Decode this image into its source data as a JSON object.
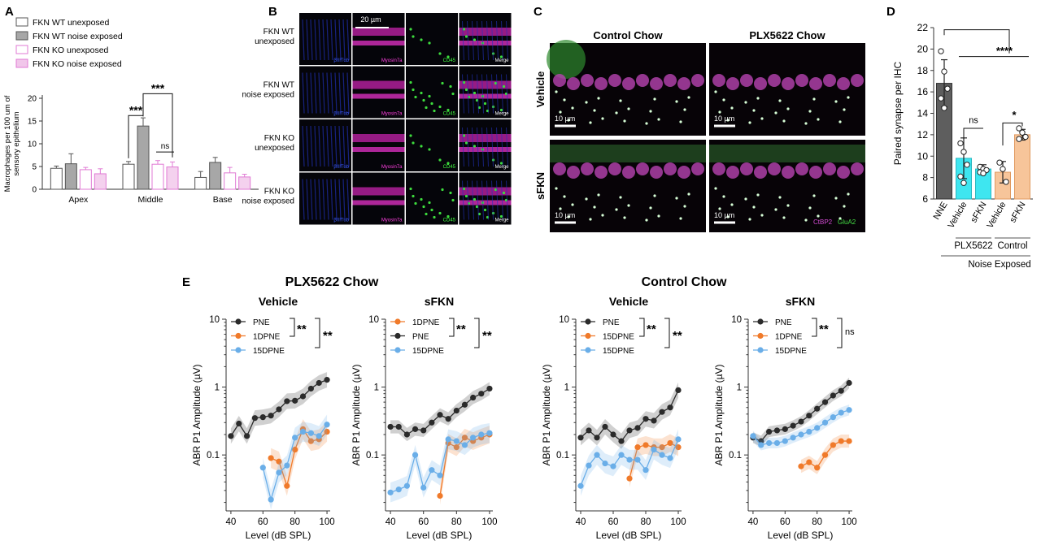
{
  "panels": {
    "A": {
      "letter": "A"
    },
    "B": {
      "letter": "B",
      "scalebar": "20 µm",
      "rows": [
        "FKN WT\nunexposed",
        "FKN WT\nnoise exposed",
        "FKN KO\nunexposed",
        "FKN KO\nnoise exposed"
      ],
      "channels": [
        "βIIITub",
        "Myosin7a",
        "CD45",
        "Merge"
      ]
    },
    "C": {
      "letter": "C",
      "col_titles": [
        "Control Chow",
        "PLX5622 Chow"
      ],
      "row_titles": [
        "Vehicle",
        "sFKN"
      ],
      "scalebar": "10 µm",
      "legend_ctbp2": "CtBP2",
      "legend_glua2": "GluA2"
    },
    "D": {
      "letter": "D",
      "group_labels": [
        "PLX5622",
        "Control"
      ],
      "bottom_label": "Noise Exposed"
    },
    "E": {
      "letter": "E",
      "group_titles": [
        "PLX5622 Chow",
        "Control Chow"
      ]
    }
  },
  "colors": {
    "wt_unexp": "#ffffff",
    "wt_noise": "#a7a7a7",
    "ko_unexp": "#ffffff",
    "ko_noise": "#f1c6ea",
    "pink": "#e07ad4",
    "pne": "#2b2b2b",
    "d1": "#f07a2a",
    "d15": "#6aaee8",
    "cyan": "#3ee6f0",
    "peach": "#f7c59a"
  },
  "chart_data": [
    {
      "id": "A",
      "type": "bar",
      "title": "",
      "ylabel": "Macrophages per 100 um of\nsensory epithelium",
      "xlabel": "",
      "ylim": [
        0,
        20
      ],
      "yticks": [
        0,
        5,
        10,
        15,
        20
      ],
      "categories": [
        "Apex",
        "Middle",
        "Base"
      ],
      "series": [
        {
          "name": "FKN WT unexposed",
          "values": [
            4.6,
            5.5,
            2.6
          ],
          "errors": [
            0.5,
            0.6,
            1.3
          ]
        },
        {
          "name": "FKN WT noise exposed",
          "values": [
            5.6,
            13.9,
            5.9
          ],
          "errors": [
            2.2,
            1.8,
            1.1
          ]
        },
        {
          "name": "FKN KO unexposed",
          "values": [
            4.3,
            5.5,
            3.6
          ],
          "errors": [
            0.5,
            0.8,
            1.2
          ]
        },
        {
          "name": "FKN KO noise exposed",
          "values": [
            3.4,
            4.9,
            2.7
          ],
          "errors": [
            1.1,
            1.1,
            0.6
          ]
        }
      ],
      "annotations": [
        "***",
        "***",
        "ns"
      ]
    },
    {
      "id": "D",
      "type": "bar",
      "ylabel": "Paired synapse per IHC",
      "ylim": [
        6,
        22
      ],
      "yticks": [
        6,
        8,
        10,
        12,
        14,
        16,
        18,
        20,
        22
      ],
      "categories": [
        "NNE",
        "Vehicle",
        "sFKN",
        "Vehicle",
        "sFKN"
      ],
      "values": [
        16.8,
        9.8,
        8.8,
        8.5,
        12.0
      ],
      "errors": [
        2.2,
        1.9,
        0.4,
        1.0,
        0.5
      ],
      "points": [
        [
          19.8,
          17.9,
          16.3,
          15.4,
          14.5
        ],
        [
          11.2,
          10.4,
          9.2,
          8.1,
          7.5
        ],
        [
          9.0,
          8.8,
          8.7,
          8.5,
          8.4
        ],
        [
          9.4,
          8.8,
          7.6
        ],
        [
          12.6,
          12.2,
          11.8,
          11.6
        ]
      ],
      "annotations": [
        "****",
        "ns",
        "*"
      ]
    },
    {
      "id": "E1",
      "type": "line",
      "title": "Vehicle",
      "ylabel": "ABR P1 Amplitude (µV)",
      "xlabel": "Level (dB SPL)",
      "xlim": [
        37,
        102
      ],
      "ylim": [
        0.015,
        10
      ],
      "yscale": "log",
      "xticks": [
        40,
        60,
        80,
        100
      ],
      "yticks": [
        0.1,
        1,
        10
      ],
      "series": [
        {
          "name": "PNE",
          "x": [
            40,
            45,
            50,
            55,
            60,
            65,
            70,
            75,
            80,
            85,
            90,
            95,
            100
          ],
          "y": [
            0.19,
            0.29,
            0.19,
            0.35,
            0.36,
            0.38,
            0.47,
            0.62,
            0.63,
            0.73,
            0.95,
            1.15,
            1.28
          ],
          "band": 0.3
        },
        {
          "name": "1DPNE",
          "x": [
            65,
            70,
            75,
            80,
            85,
            90,
            95,
            100
          ],
          "y": [
            0.09,
            0.08,
            0.035,
            0.12,
            0.24,
            0.16,
            0.17,
            0.22
          ],
          "band": 0.4
        },
        {
          "name": "15DPNE",
          "x": [
            60,
            65,
            70,
            75,
            80,
            85,
            90,
            95,
            100
          ],
          "y": [
            0.065,
            0.022,
            0.055,
            0.07,
            0.18,
            0.22,
            0.21,
            0.19,
            0.28
          ],
          "band": 0.4
        }
      ],
      "sig": [
        "**",
        "**"
      ]
    },
    {
      "id": "E2",
      "type": "line",
      "title": "sFKN",
      "ylabel": "ABR P1 Amplitude (µV)",
      "xlabel": "Level (dB SPL)",
      "xlim": [
        37,
        102
      ],
      "ylim": [
        0.015,
        10
      ],
      "yscale": "log",
      "xticks": [
        40,
        60,
        80,
        100
      ],
      "yticks": [
        0.1,
        1,
        10
      ],
      "series": [
        {
          "name": "PNE",
          "x": [
            40,
            45,
            50,
            55,
            60,
            65,
            70,
            75,
            80,
            85,
            90,
            95,
            100
          ],
          "y": [
            0.26,
            0.26,
            0.2,
            0.24,
            0.23,
            0.3,
            0.39,
            0.34,
            0.45,
            0.55,
            0.7,
            0.8,
            0.95
          ],
          "band": 0.25
        },
        {
          "name": "1DPNE",
          "x": [
            70,
            75,
            80,
            85,
            90,
            95,
            100
          ],
          "y": [
            0.025,
            0.15,
            0.13,
            0.18,
            0.16,
            0.18,
            0.2
          ],
          "band": 0.35
        },
        {
          "name": "15DPNE",
          "x": [
            40,
            45,
            50,
            55,
            60,
            65,
            70,
            75,
            80,
            85,
            90,
            95,
            100
          ],
          "y": [
            0.028,
            0.031,
            0.035,
            0.1,
            0.033,
            0.06,
            0.05,
            0.17,
            0.16,
            0.14,
            0.18,
            0.2,
            0.21
          ],
          "band": 0.4
        }
      ],
      "legend_order": [
        "1DPNE",
        "PNE",
        "15DPNE"
      ],
      "sig": [
        "**",
        "**"
      ]
    },
    {
      "id": "E3",
      "type": "line",
      "title": "Vehicle",
      "ylabel": "ABR P1 Amplitude (µV)",
      "xlabel": "Level (dB SPL)",
      "xlim": [
        37,
        102
      ],
      "ylim": [
        0.015,
        10
      ],
      "yscale": "log",
      "xticks": [
        40,
        60,
        80,
        100
      ],
      "yticks": [
        0.1,
        1,
        10
      ],
      "series": [
        {
          "name": "PNE",
          "x": [
            40,
            45,
            50,
            55,
            60,
            65,
            70,
            75,
            80,
            85,
            90,
            95,
            100
          ],
          "y": [
            0.18,
            0.23,
            0.18,
            0.26,
            0.2,
            0.16,
            0.23,
            0.25,
            0.34,
            0.32,
            0.43,
            0.5,
            0.9
          ],
          "band": 0.3
        },
        {
          "name": "15DPNE",
          "x": [
            70,
            75,
            80,
            85,
            90,
            95,
            100
          ],
          "y": [
            0.045,
            0.13,
            0.14,
            0.13,
            0.13,
            0.15,
            0.13
          ],
          "band": 0.35
        },
        {
          "name": "15DPNE",
          "x": [
            40,
            45,
            50,
            55,
            60,
            65,
            70,
            75,
            80,
            85,
            90,
            95,
            100
          ],
          "y": [
            0.035,
            0.07,
            0.1,
            0.075,
            0.068,
            0.1,
            0.085,
            0.085,
            0.06,
            0.12,
            0.1,
            0.09,
            0.17
          ],
          "band": 0.4
        }
      ],
      "sig": [
        "**",
        "**"
      ]
    },
    {
      "id": "E4",
      "type": "line",
      "title": "sFKN",
      "ylabel": "ABR P1 Amplitude (µV)",
      "xlabel": "Level (dB SPL)",
      "xlim": [
        37,
        102
      ],
      "ylim": [
        0.015,
        10
      ],
      "yscale": "log",
      "xticks": [
        40,
        60,
        80,
        100
      ],
      "yticks": [
        0.1,
        1,
        10
      ],
      "series": [
        {
          "name": "PNE",
          "x": [
            40,
            45,
            50,
            55,
            60,
            65,
            70,
            75,
            80,
            85,
            90,
            95,
            100
          ],
          "y": [
            0.18,
            0.16,
            0.22,
            0.23,
            0.24,
            0.27,
            0.31,
            0.38,
            0.48,
            0.6,
            0.75,
            0.88,
            1.15
          ],
          "band": 0.2
        },
        {
          "name": "1DPNE",
          "x": [
            70,
            75,
            80,
            85,
            90,
            95,
            100
          ],
          "y": [
            0.068,
            0.078,
            0.065,
            0.1,
            0.14,
            0.16,
            0.16
          ],
          "band": 0.25
        },
        {
          "name": "15DPNE",
          "x": [
            40,
            45,
            50,
            55,
            60,
            65,
            70,
            75,
            80,
            85,
            90,
            95,
            100
          ],
          "y": [
            0.19,
            0.14,
            0.15,
            0.15,
            0.16,
            0.18,
            0.2,
            0.22,
            0.25,
            0.3,
            0.36,
            0.42,
            0.46
          ],
          "band": 0.2
        }
      ],
      "sig": [
        "**",
        "ns"
      ]
    }
  ]
}
